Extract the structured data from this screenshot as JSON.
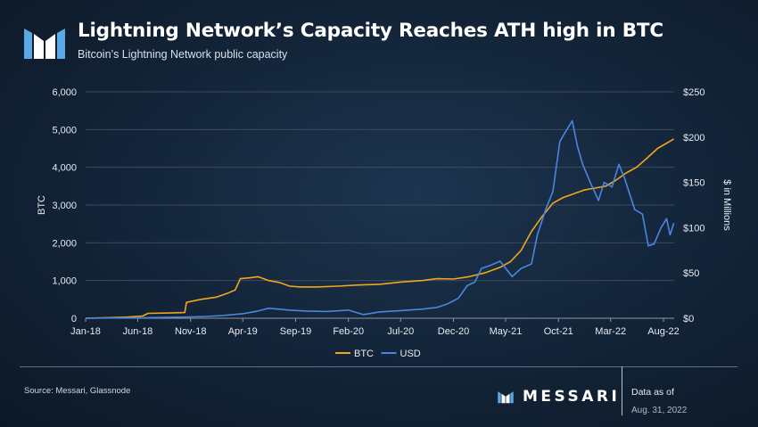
{
  "header": {
    "title": "Lightning Network’s Capacity Reaches ATH high in BTC",
    "subtitle": "Bitcoin’s Lightning Network public capacity"
  },
  "footer": {
    "source": "Source: Messari, Glassnode",
    "brand": "MESSARI",
    "as_of_label": "Data as of",
    "as_of_date": "Aug. 31, 2022"
  },
  "icons": {
    "logo": "messari-m-logo",
    "brand": "messari-m-logo"
  },
  "colors": {
    "btc": "#f2a61c",
    "usd": "#4a86e0",
    "grid": "#3a4b60"
  },
  "chart_data": {
    "type": "line",
    "title": "Lightning Network’s Capacity Reaches ATH high in BTC",
    "subtitle": "Bitcoin’s Lightning Network public capacity",
    "xlabel": "",
    "ylabel": "BTC",
    "y2label": "$ in Millions",
    "ylim": [
      0,
      6000
    ],
    "y2lim": [
      0,
      250
    ],
    "xlim": [
      "2018-01-01",
      "2022-09-01"
    ],
    "x_ticks": [
      {
        "date": "2018-01-01",
        "label": "Jan-18"
      },
      {
        "date": "2018-06-01",
        "label": "Jun-18"
      },
      {
        "date": "2018-11-01",
        "label": "Nov-18"
      },
      {
        "date": "2019-04-01",
        "label": "Apr-19"
      },
      {
        "date": "2019-09-01",
        "label": "Sep-19"
      },
      {
        "date": "2020-02-01",
        "label": "Feb-20"
      },
      {
        "date": "2020-07-01",
        "label": "Jul-20"
      },
      {
        "date": "2020-12-01",
        "label": "Dec-20"
      },
      {
        "date": "2021-05-01",
        "label": "May-21"
      },
      {
        "date": "2021-10-01",
        "label": "Oct-21"
      },
      {
        "date": "2022-03-01",
        "label": "Mar-22"
      },
      {
        "date": "2022-08-01",
        "label": "Aug-22"
      }
    ],
    "y_ticks": [
      {
        "value": 0,
        "label": "0"
      },
      {
        "value": 1000,
        "label": "1,000"
      },
      {
        "value": 2000,
        "label": "2,000"
      },
      {
        "value": 3000,
        "label": "3,000"
      },
      {
        "value": 4000,
        "label": "4,000"
      },
      {
        "value": 5000,
        "label": "5,000"
      },
      {
        "value": 6000,
        "label": "6,000"
      }
    ],
    "y2_ticks": [
      {
        "value": 0,
        "label": "$0"
      },
      {
        "value": 50,
        "label": "$50"
      },
      {
        "value": 100,
        "label": "$100"
      },
      {
        "value": 150,
        "label": "$150"
      },
      {
        "value": 200,
        "label": "$200"
      },
      {
        "value": 250,
        "label": "$250"
      }
    ],
    "grid": "horizontal",
    "legend": "bottom-center",
    "series": [
      {
        "name": "BTC",
        "axis": "left",
        "color": "#f2a61c",
        "points": [
          [
            "2018-01-01",
            0
          ],
          [
            "2018-03-01",
            15
          ],
          [
            "2018-05-01",
            30
          ],
          [
            "2018-06-15",
            60
          ],
          [
            "2018-07-01",
            130
          ],
          [
            "2018-09-01",
            140
          ],
          [
            "2018-10-15",
            150
          ],
          [
            "2018-10-20",
            420
          ],
          [
            "2018-12-01",
            500
          ],
          [
            "2019-01-15",
            560
          ],
          [
            "2019-02-15",
            660
          ],
          [
            "2019-03-10",
            750
          ],
          [
            "2019-03-25",
            1050
          ],
          [
            "2019-04-20",
            1070
          ],
          [
            "2019-05-15",
            1100
          ],
          [
            "2019-06-15",
            1000
          ],
          [
            "2019-07-15",
            950
          ],
          [
            "2019-08-15",
            850
          ],
          [
            "2019-09-15",
            830
          ],
          [
            "2019-11-01",
            830
          ],
          [
            "2020-01-01",
            850
          ],
          [
            "2020-03-01",
            880
          ],
          [
            "2020-05-01",
            900
          ],
          [
            "2020-07-01",
            960
          ],
          [
            "2020-09-01",
            1000
          ],
          [
            "2020-10-15",
            1050
          ],
          [
            "2020-12-01",
            1040
          ],
          [
            "2021-01-15",
            1100
          ],
          [
            "2021-03-01",
            1200
          ],
          [
            "2021-04-15",
            1350
          ],
          [
            "2021-05-15",
            1500
          ],
          [
            "2021-06-15",
            1800
          ],
          [
            "2021-07-15",
            2300
          ],
          [
            "2021-08-15",
            2700
          ],
          [
            "2021-09-15",
            3050
          ],
          [
            "2021-10-15",
            3200
          ],
          [
            "2021-11-15",
            3300
          ],
          [
            "2021-12-15",
            3400
          ],
          [
            "2022-01-15",
            3450
          ],
          [
            "2022-02-15",
            3500
          ],
          [
            "2022-03-15",
            3650
          ],
          [
            "2022-04-15",
            3850
          ],
          [
            "2022-05-15",
            4000
          ],
          [
            "2022-06-15",
            4250
          ],
          [
            "2022-07-15",
            4500
          ],
          [
            "2022-08-31",
            4750
          ]
        ]
      },
      {
        "name": "USD",
        "axis": "right",
        "color": "#4a86e0",
        "points": [
          [
            "2018-01-01",
            0
          ],
          [
            "2018-06-01",
            0.5
          ],
          [
            "2018-11-01",
            1.5
          ],
          [
            "2018-12-15",
            2
          ],
          [
            "2019-02-01",
            3
          ],
          [
            "2019-04-01",
            5
          ],
          [
            "2019-05-15",
            8
          ],
          [
            "2019-06-15",
            11
          ],
          [
            "2019-07-15",
            10
          ],
          [
            "2019-08-15",
            9
          ],
          [
            "2019-10-01",
            8
          ],
          [
            "2019-12-01",
            7.5
          ],
          [
            "2020-02-01",
            9
          ],
          [
            "2020-03-15",
            4
          ],
          [
            "2020-05-01",
            7
          ],
          [
            "2020-07-01",
            8.5
          ],
          [
            "2020-09-01",
            10
          ],
          [
            "2020-10-15",
            12
          ],
          [
            "2020-11-15",
            16
          ],
          [
            "2020-12-15",
            22
          ],
          [
            "2021-01-10",
            36
          ],
          [
            "2021-02-01",
            40
          ],
          [
            "2021-02-20",
            55
          ],
          [
            "2021-03-15",
            58
          ],
          [
            "2021-04-15",
            63
          ],
          [
            "2021-05-20",
            46
          ],
          [
            "2021-06-15",
            55
          ],
          [
            "2021-07-15",
            60
          ],
          [
            "2021-08-01",
            92
          ],
          [
            "2021-08-25",
            120
          ],
          [
            "2021-09-15",
            140
          ],
          [
            "2021-10-05",
            195
          ],
          [
            "2021-10-20",
            205
          ],
          [
            "2021-11-10",
            218
          ],
          [
            "2021-11-25",
            190
          ],
          [
            "2021-12-10",
            170
          ],
          [
            "2022-01-01",
            150
          ],
          [
            "2022-01-25",
            130
          ],
          [
            "2022-02-10",
            150
          ],
          [
            "2022-03-05",
            145
          ],
          [
            "2022-03-25",
            170
          ],
          [
            "2022-04-10",
            155
          ],
          [
            "2022-05-10",
            120
          ],
          [
            "2022-06-01",
            115
          ],
          [
            "2022-06-18",
            80
          ],
          [
            "2022-07-05",
            82
          ],
          [
            "2022-07-25",
            100
          ],
          [
            "2022-08-10",
            110
          ],
          [
            "2022-08-20",
            92
          ],
          [
            "2022-08-31",
            105
          ]
        ]
      }
    ]
  }
}
